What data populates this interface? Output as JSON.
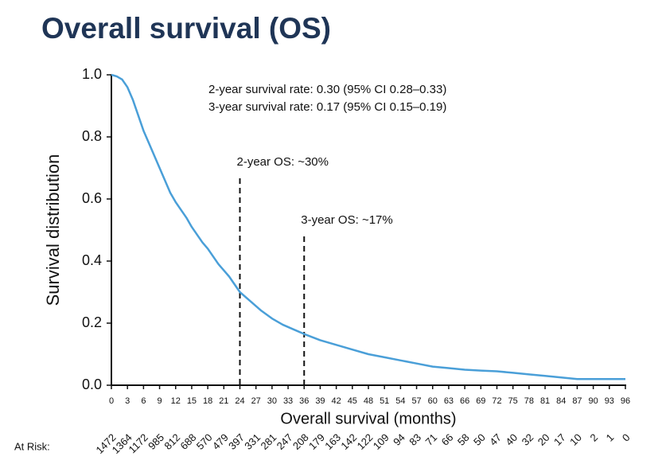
{
  "chart_data": {
    "type": "line",
    "title": "Overall survival (OS)",
    "xlabel": "Overall survival (months)",
    "ylabel": "Survival distribution",
    "notes": [
      "2-year survival rate: 0.30 (95% CI 0.28–0.33)",
      "3-year survival rate: 0.17 (95% CI 0.15–0.19)"
    ],
    "annotations": [
      {
        "text": "2-year OS: ~30%",
        "x": 24
      },
      {
        "text": "3-year OS: ~17%",
        "x": 36
      }
    ],
    "x": [
      0,
      1,
      2,
      3,
      4,
      5,
      6,
      7,
      8,
      9,
      10,
      11,
      12,
      13,
      14,
      15,
      16,
      17,
      18,
      19,
      20,
      21,
      22,
      23,
      24,
      26,
      28,
      30,
      32,
      34,
      36,
      39,
      42,
      45,
      48,
      51,
      54,
      57,
      60,
      63,
      66,
      69,
      72,
      75,
      78,
      81,
      84,
      87,
      90,
      93,
      96
    ],
    "series": [
      {
        "name": null,
        "color": "#4a9fd8",
        "values": [
          1.0,
          0.995,
          0.985,
          0.96,
          0.92,
          0.87,
          0.82,
          0.78,
          0.74,
          0.7,
          0.66,
          0.62,
          0.59,
          0.565,
          0.54,
          0.51,
          0.485,
          0.46,
          0.44,
          0.415,
          0.39,
          0.37,
          0.35,
          0.325,
          0.3,
          0.27,
          0.24,
          0.215,
          0.195,
          0.18,
          0.165,
          0.145,
          0.13,
          0.115,
          0.1,
          0.09,
          0.08,
          0.07,
          0.06,
          0.055,
          0.05,
          0.047,
          0.045,
          0.04,
          0.035,
          0.03,
          0.025,
          0.02,
          0.02,
          0.02,
          0.02
        ]
      }
    ],
    "xlim": [
      0,
      96
    ],
    "xticks": [
      0,
      3,
      6,
      9,
      12,
      15,
      18,
      21,
      24,
      27,
      30,
      33,
      36,
      39,
      42,
      45,
      48,
      51,
      54,
      57,
      60,
      63,
      66,
      69,
      72,
      75,
      78,
      81,
      84,
      87,
      90,
      93,
      96
    ],
    "ylim": [
      0,
      1
    ],
    "yticks": [
      {
        "value": 0,
        "label": "0.0"
      },
      0.2,
      0.4,
      0.6,
      0.8,
      {
        "value": 1,
        "label": "1.0"
      }
    ],
    "at_risk_label": "At Risk:",
    "at_risk": [
      1472,
      1364,
      1172,
      985,
      812,
      688,
      570,
      479,
      397,
      331,
      281,
      247,
      208,
      179,
      163,
      142,
      122,
      109,
      94,
      83,
      71,
      66,
      58,
      50,
      47,
      40,
      32,
      20,
      17,
      10,
      2,
      1,
      0
    ]
  }
}
